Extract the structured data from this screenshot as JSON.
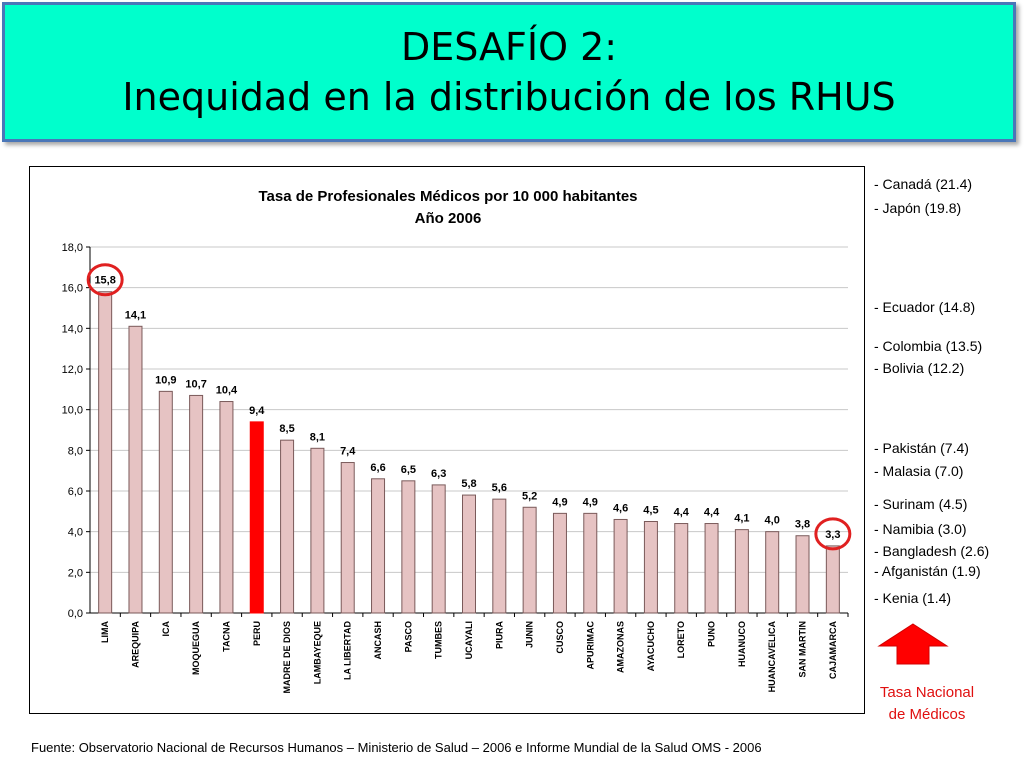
{
  "slide": {
    "title_line1": "DESAFÍO 2:",
    "title_line2": "Inequidad en la distribución de los RHUS",
    "source": "Fuente: Observatorio Nacional de Recursos Humanos – Ministerio de Salud – 2006 e Informe Mundial de la Salud OMS - 2006"
  },
  "chart_data": {
    "type": "bar",
    "title": "Tasa de Profesionales Médicos por 10 000 habitantes",
    "subtitle": "Año 2006",
    "categories": [
      "LIMA",
      "AREQUIPA",
      "ICA",
      "MOQUEGUA",
      "TACNA",
      "PERU",
      "MADRE DE DIOS",
      "LAMBAYEQUE",
      "LA LIBERTAD",
      "ANCASH",
      "PASCO",
      "TUMBES",
      "UCAYALI",
      "PIURA",
      "JUNIN",
      "CUSCO",
      "APURIMAC",
      "AMAZONAS",
      "AYACUCHO",
      "LORETO",
      "PUNO",
      "HUANUCO",
      "HUANCAVELICA",
      "SAN MARTIN",
      "CAJAMARCA"
    ],
    "values": [
      15.8,
      14.1,
      10.9,
      10.7,
      10.4,
      9.4,
      8.5,
      8.1,
      7.4,
      6.6,
      6.5,
      6.3,
      5.8,
      5.6,
      5.2,
      4.9,
      4.9,
      4.6,
      4.5,
      4.4,
      4.4,
      4.1,
      4.0,
      3.8,
      3.3
    ],
    "value_labels": [
      "15,8",
      "14,1",
      "10,9",
      "10,7",
      "10,4",
      "9,4",
      "8,5",
      "8,1",
      "7,4",
      "6,6",
      "6,5",
      "6,3",
      "5,8",
      "5,6",
      "5,2",
      "4,9",
      "4,9",
      "4,6",
      "4,5",
      "4,4",
      "4,4",
      "4,1",
      "4,0",
      "3,8",
      "3,3"
    ],
    "ylim": [
      0,
      18
    ],
    "y_ticks": [
      "0,0",
      "2,0",
      "4,0",
      "6,0",
      "8,0",
      "10,0",
      "12,0",
      "14,0",
      "16,0",
      "18,0"
    ],
    "grid": true,
    "highlight_category": "PERU",
    "circled_categories": [
      "LIMA",
      "CAJAMARCA"
    ],
    "colors": {
      "bar": "#e6c3c3",
      "bar_stroke": "#7a5a5a",
      "highlight": "#ff0000",
      "circle": "#e02020"
    }
  },
  "reference_countries": [
    "- Canadá (21.4)",
    "- Japón (19.8)",
    "- Ecuador (14.8)",
    "- Colombia (13.5)",
    "- Bolivia (12.2)",
    "- Pakistán (7.4)",
    "- Malasia (7.0)",
    "- Surinam (4.5)",
    "- Namibia (3.0)",
    "- Bangladesh (2.6)",
    "- Afganistán (1.9)",
    "- Kenia (1.4)"
  ],
  "national_rate_label": [
    "Tasa Nacional",
    "de Médicos"
  ],
  "icons": {
    "arrow": "red-up-arrow-icon"
  }
}
